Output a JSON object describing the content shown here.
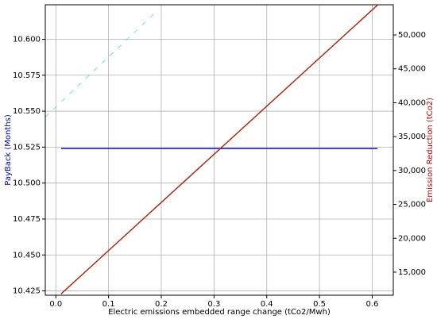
{
  "chart_data": {
    "type": "line",
    "xlabel": "Electric emissions embedded range change (tCo2/Mwh)",
    "ylabel": "PayBack (Months)",
    "y2label": "Emission Reduction (tCo2)",
    "ylabel_color": "#0000cc",
    "y2label_color": "#cc0000",
    "grid": true,
    "xlim": [
      -0.02,
      0.64
    ],
    "xticks": [
      {
        "value": 0,
        "label": "0.0"
      },
      0.1,
      0.2,
      0.3,
      0.4,
      0.5,
      0.6
    ],
    "ylim": [
      10.422,
      10.624
    ],
    "yticks": [
      10.425,
      {
        "value": 10.45,
        "label": "10.450"
      },
      10.475,
      {
        "value": 10.5,
        "label": "10.500"
      },
      10.525,
      {
        "value": 10.55,
        "label": "10.550"
      },
      10.575,
      {
        "value": 10.6,
        "label": "10.600"
      }
    ],
    "y2lim": [
      11600,
      54450
    ],
    "y2ticks": [
      {
        "value": 15000,
        "label": "15,000"
      },
      {
        "value": 20000,
        "label": "20,000"
      },
      {
        "value": 25000,
        "label": "25,000"
      },
      {
        "value": 30000,
        "label": "30,000"
      },
      {
        "value": 35000,
        "label": "35,000"
      },
      {
        "value": 40000,
        "label": "40,000"
      },
      {
        "value": 45000,
        "label": "45,000"
      },
      {
        "value": 50000,
        "label": "50,000"
      }
    ],
    "series": [
      {
        "color": "#66ddff",
        "dashed": true,
        "x": [
          -0.02,
          0.19
        ],
        "values": [
          10.546,
          10.619
        ]
      },
      {
        "color": "#1a1acc",
        "x": [
          0.01,
          0.61
        ],
        "values": [
          10.524,
          10.524
        ]
      },
      {
        "color": "#b02a10",
        "axis": "y2",
        "x": [
          0.01,
          0.61
        ],
        "values": [
          11800,
          54400
        ]
      }
    ]
  }
}
